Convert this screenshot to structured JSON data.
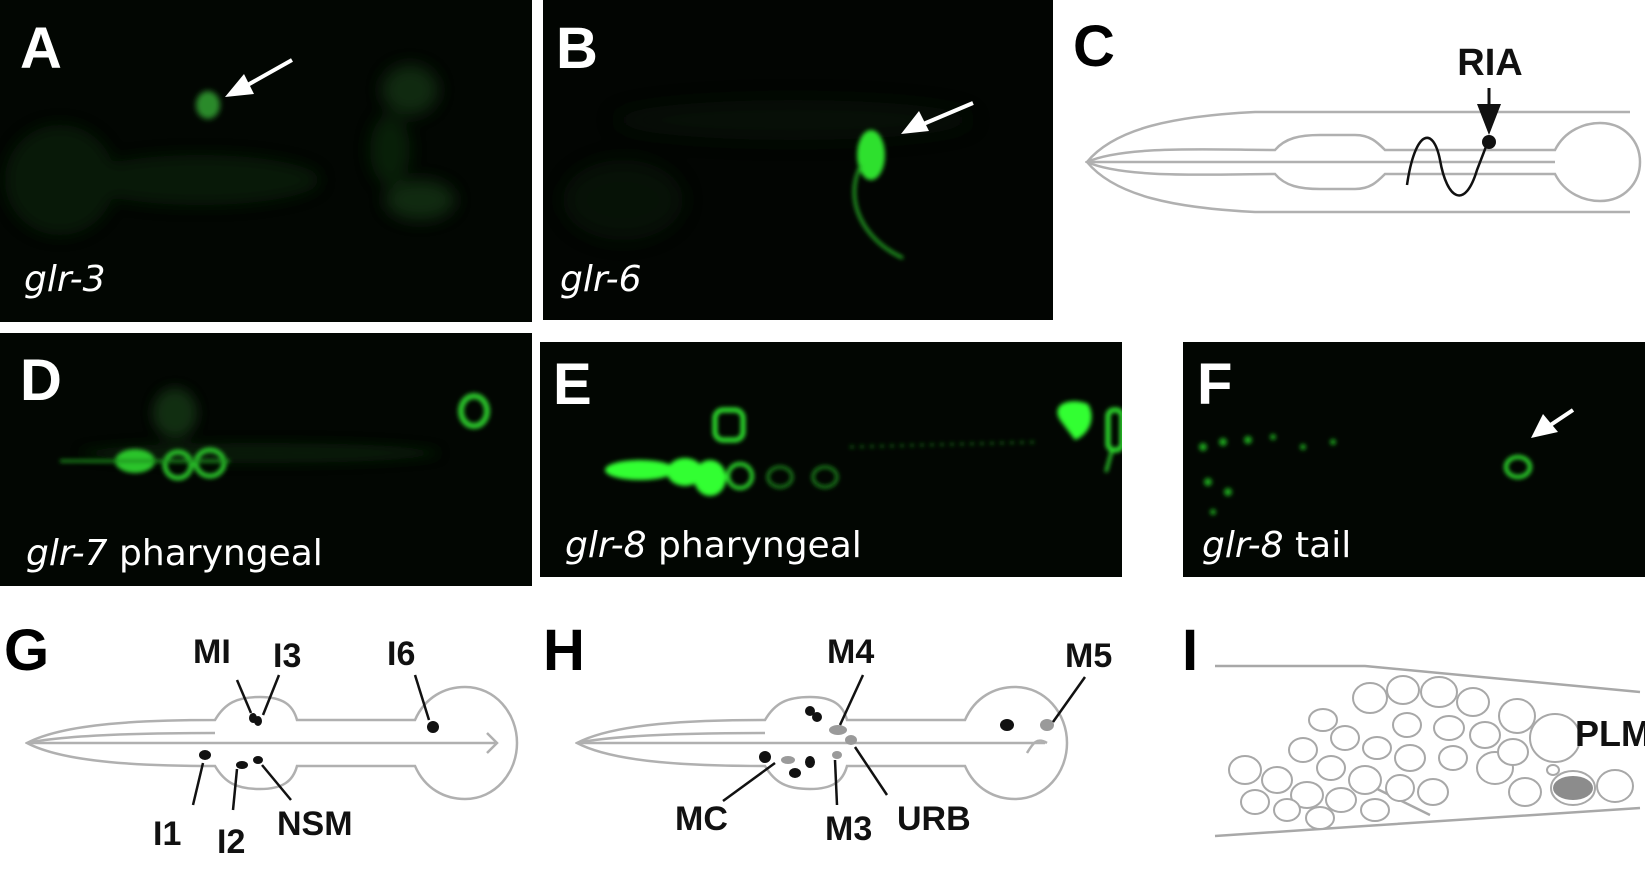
{
  "panels": {
    "A": {
      "letter": "A",
      "gene": "glr-3",
      "suffix": ""
    },
    "B": {
      "letter": "B",
      "gene": "glr-6",
      "suffix": ""
    },
    "C": {
      "letter": "C",
      "labels": {
        "ria": "RIA"
      }
    },
    "D": {
      "letter": "D",
      "gene": "glr-7",
      "suffix": " pharyngeal"
    },
    "E": {
      "letter": "E",
      "gene": "glr-8",
      "suffix": " pharyngeal"
    },
    "F": {
      "letter": "F",
      "gene": "glr-8",
      "suffix": " tail"
    },
    "G": {
      "letter": "G",
      "labels": {
        "mi": "MI",
        "i3": "I3",
        "i6": "I6",
        "i1": "I1",
        "i2": "I2",
        "nsm": "NSM"
      }
    },
    "H": {
      "letter": "H",
      "labels": {
        "m4": "M4",
        "m5": "M5",
        "mc": "MC",
        "m3": "M3",
        "urb": "URB"
      }
    },
    "I": {
      "letter": "I",
      "labels": {
        "plm": "PLM"
      }
    }
  },
  "colors": {
    "fluorescence": "#1fd11f",
    "outline": "#a8a8a8",
    "neuron_black": "#111111",
    "neuron_gray": "#9a9a9a",
    "plm_fill": "#8c8c8c"
  }
}
